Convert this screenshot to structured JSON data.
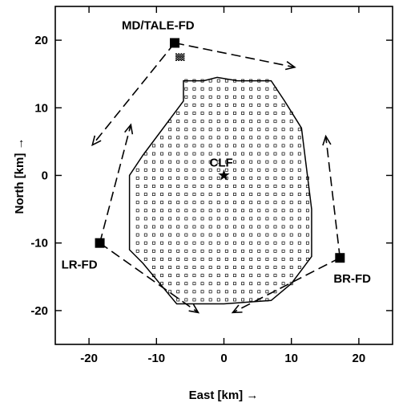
{
  "chart_data": {
    "type": "scatter",
    "xlabel": "East [km] →",
    "ylabel": "North [km] →",
    "xlim": [
      -25,
      25
    ],
    "ylim": [
      -25,
      25
    ],
    "x_ticks": [
      -20,
      -10,
      0,
      10,
      20
    ],
    "y_ticks": [
      -20,
      -10,
      0,
      10,
      20
    ],
    "grid": false,
    "array_boundary": [
      [
        -6,
        14
      ],
      [
        -3,
        14
      ],
      [
        -1,
        14.5
      ],
      [
        2,
        14
      ],
      [
        7,
        14
      ],
      [
        9,
        11
      ],
      [
        11.5,
        7
      ],
      [
        12,
        3
      ],
      [
        13,
        -5
      ],
      [
        13,
        -12
      ],
      [
        10,
        -16
      ],
      [
        7,
        -18.5
      ],
      [
        0,
        -19
      ],
      [
        -7,
        -19
      ],
      [
        -12,
        -13
      ],
      [
        -14,
        -11
      ],
      [
        -14,
        0
      ],
      [
        -12,
        3
      ],
      [
        -6,
        11
      ]
    ],
    "detector_spacing_km": 1.2,
    "sites": [
      {
        "name": "MD/TALE-FD",
        "x": -7.3,
        "y": 19.6
      },
      {
        "name": "LR-FD",
        "x": -18.4,
        "y": -10
      },
      {
        "name": "BR-FD",
        "x": 17.2,
        "y": -12.2
      },
      {
        "name": "CLF",
        "x": 0,
        "y": 0
      }
    ],
    "tale_infill_center": [
      -6.5,
      17.5
    ],
    "fov_arrows": [
      {
        "from": [
          -7.3,
          19.6
        ],
        "to": [
          -19.5,
          4.5
        ]
      },
      {
        "from": [
          -7.3,
          19.6
        ],
        "to": [
          10.5,
          16
        ]
      },
      {
        "from": [
          -18.4,
          -10
        ],
        "to": [
          -13.8,
          7.5
        ]
      },
      {
        "from": [
          -18.4,
          -10
        ],
        "to": [
          -3.8,
          -20.3
        ]
      },
      {
        "from": [
          17.2,
          -12.2
        ],
        "to": [
          15.1,
          5.8
        ]
      },
      {
        "from": [
          17.2,
          -12.2
        ],
        "to": [
          1.3,
          -20.3
        ]
      }
    ]
  }
}
